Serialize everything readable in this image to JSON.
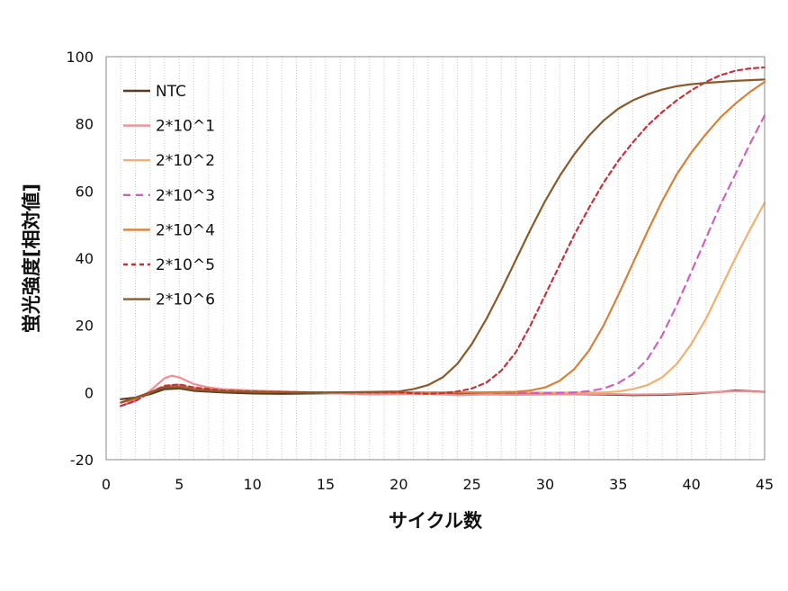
{
  "chart_data": {
    "type": "line",
    "title": "",
    "xlabel": "サイクル数",
    "ylabel": "蛍光強度[相対値]",
    "xlim": [
      0,
      45
    ],
    "ylim": [
      -20,
      100
    ],
    "xticks": [
      0,
      5,
      10,
      15,
      20,
      25,
      30,
      35,
      40,
      45
    ],
    "yticks": [
      -20,
      0,
      20,
      40,
      60,
      80,
      100
    ],
    "x_minor_grid_step": 1,
    "grid": "vertical minor dotted",
    "legend_position": "top-left",
    "series": [
      {
        "name": "NTC",
        "color": "#5a3a22",
        "dash": "solid",
        "x": [
          1,
          2,
          3,
          4,
          5,
          6,
          8,
          10,
          12,
          14,
          16,
          18,
          20,
          22,
          24,
          26,
          28,
          30,
          32,
          34,
          36,
          38,
          40,
          42,
          43,
          44,
          45
        ],
        "y": [
          -2,
          -1.5,
          -0.5,
          1,
          1.2,
          0.5,
          0,
          -0.3,
          -0.4,
          -0.3,
          -0.2,
          -0.3,
          -0.2,
          -0.1,
          -0.3,
          -0.5,
          -0.6,
          -0.4,
          -0.5,
          -0.6,
          -0.8,
          -0.7,
          -0.4,
          0.2,
          0.6,
          0.4,
          0.2
        ]
      },
      {
        "name": "2*10^1",
        "color": "#ef8f8f",
        "dash": "solid",
        "x": [
          1,
          2,
          3,
          4,
          4.5,
          5,
          6,
          7,
          8,
          10,
          12,
          14,
          16,
          18,
          20,
          22,
          24,
          26,
          28,
          30,
          32,
          34,
          36,
          38,
          40,
          42,
          43,
          44,
          45
        ],
        "y": [
          -4,
          -2.5,
          0.5,
          4.3,
          5,
          4.5,
          2.5,
          1.5,
          1,
          0.6,
          0.3,
          0,
          -0.3,
          -0.6,
          -0.5,
          -0.4,
          -0.8,
          -0.6,
          -0.7,
          -0.6,
          -0.5,
          -0.4,
          -0.6,
          -0.5,
          -0.2,
          0.2,
          0.4,
          0.3,
          0.2
        ]
      },
      {
        "name": "2*10^2",
        "color": "#f2b070",
        "dash": "solid",
        "x": [
          1,
          2,
          3,
          4,
          5,
          6,
          8,
          10,
          15,
          20,
          25,
          30,
          34,
          35,
          36,
          37,
          38,
          39,
          40,
          41,
          42,
          43,
          44,
          45
        ],
        "y": [
          -3,
          -2,
          0,
          1.8,
          2,
          1.2,
          0.5,
          0.3,
          0,
          0,
          0,
          0,
          0,
          0.3,
          1,
          2.2,
          4.5,
          8.5,
          14.5,
          22,
          31,
          40,
          48.5,
          56.5
        ]
      },
      {
        "name": "2*10^3",
        "color": "#d060c0",
        "dash": "dash",
        "x": [
          1,
          2,
          3,
          4,
          5,
          6,
          8,
          10,
          15,
          20,
          25,
          30,
          32,
          33,
          34,
          35,
          36,
          37,
          38,
          39,
          40,
          41,
          42,
          43,
          44,
          45
        ],
        "y": [
          -4,
          -2.5,
          0,
          2,
          2.2,
          1.3,
          0.5,
          0.2,
          0,
          0,
          0,
          -0.2,
          0,
          0.4,
          1.2,
          2.8,
          5.5,
          10,
          17,
          26,
          36,
          46,
          56,
          65,
          74,
          82.5
        ]
      },
      {
        "name": "2*10^4",
        "color": "#d88038",
        "dash": "solid",
        "x": [
          1,
          2,
          3,
          4,
          5,
          6,
          8,
          10,
          15,
          20,
          25,
          28,
          29,
          30,
          31,
          32,
          33,
          34,
          35,
          36,
          37,
          38,
          39,
          40,
          41,
          42,
          43,
          44,
          45
        ],
        "y": [
          -3,
          -2,
          0,
          1.8,
          2,
          1.2,
          0.5,
          0.2,
          0,
          0,
          0,
          0.2,
          0.6,
          1.5,
          3.5,
          7,
          12.5,
          20,
          29,
          38.5,
          48,
          57,
          65,
          71.5,
          77,
          82,
          86,
          89.5,
          92.5
        ]
      },
      {
        "name": "2*10^5",
        "color": "#c8303a",
        "dash": "shortdash",
        "x": [
          1,
          2,
          3,
          4,
          5,
          6,
          8,
          10,
          15,
          20,
          21,
          22,
          23,
          24,
          25,
          26,
          27,
          28,
          29,
          30,
          31,
          32,
          33,
          34,
          35,
          36,
          37,
          38,
          39,
          40,
          41,
          42,
          43,
          44,
          45
        ],
        "y": [
          -4,
          -2.5,
          0,
          2,
          2.4,
          1.5,
          0.6,
          0.3,
          0,
          0,
          -0.2,
          -0.4,
          -0.2,
          0.3,
          1.2,
          3,
          6.5,
          12,
          20,
          29,
          38,
          47,
          55,
          62.5,
          69,
          74.5,
          79.5,
          83.5,
          87,
          90,
          92.5,
          94.5,
          95.8,
          96.5,
          96.8
        ]
      },
      {
        "name": "2*10^6",
        "color": "#8b5a2b",
        "dash": "solid",
        "x": [
          1,
          2,
          3,
          4,
          5,
          6,
          8,
          10,
          15,
          20,
          21,
          22,
          23,
          24,
          25,
          26,
          27,
          28,
          29,
          30,
          31,
          32,
          33,
          34,
          35,
          36,
          37,
          38,
          39,
          40,
          41,
          42,
          43,
          44,
          45
        ],
        "y": [
          -3,
          -1.5,
          0,
          1.5,
          1.6,
          0.8,
          0.3,
          0.2,
          0,
          0.3,
          1,
          2.2,
          4.5,
          8.5,
          14.5,
          22,
          30.5,
          39.5,
          48.5,
          57,
          64.5,
          71,
          76.5,
          81,
          84.5,
          87,
          88.8,
          90.2,
          91.2,
          91.8,
          92.2,
          92.5,
          92.8,
          93,
          93.2
        ]
      }
    ]
  }
}
